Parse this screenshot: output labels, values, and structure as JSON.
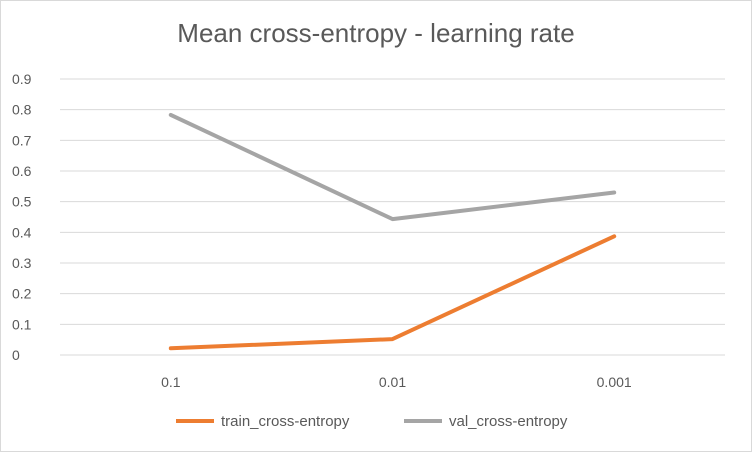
{
  "chart_data": {
    "type": "line",
    "title": "Mean cross-entropy - learning rate",
    "xlabel": "",
    "ylabel": "",
    "categories": [
      "0.1",
      "0.01",
      "0.001"
    ],
    "ylim": [
      0,
      0.9
    ],
    "yticks": [
      "0",
      "0.1",
      "0.2",
      "0.3",
      "0.4",
      "0.5",
      "0.6",
      "0.7",
      "0.8",
      "0.9"
    ],
    "grid": true,
    "legend_position": "bottom",
    "series": [
      {
        "name": "train_cross-entropy",
        "color": "#ED7D31",
        "values": [
          0.022,
          0.052,
          0.387
        ]
      },
      {
        "name": "val_cross-entropy",
        "color": "#A5A5A5",
        "values": [
          0.783,
          0.443,
          0.53
        ]
      }
    ]
  }
}
